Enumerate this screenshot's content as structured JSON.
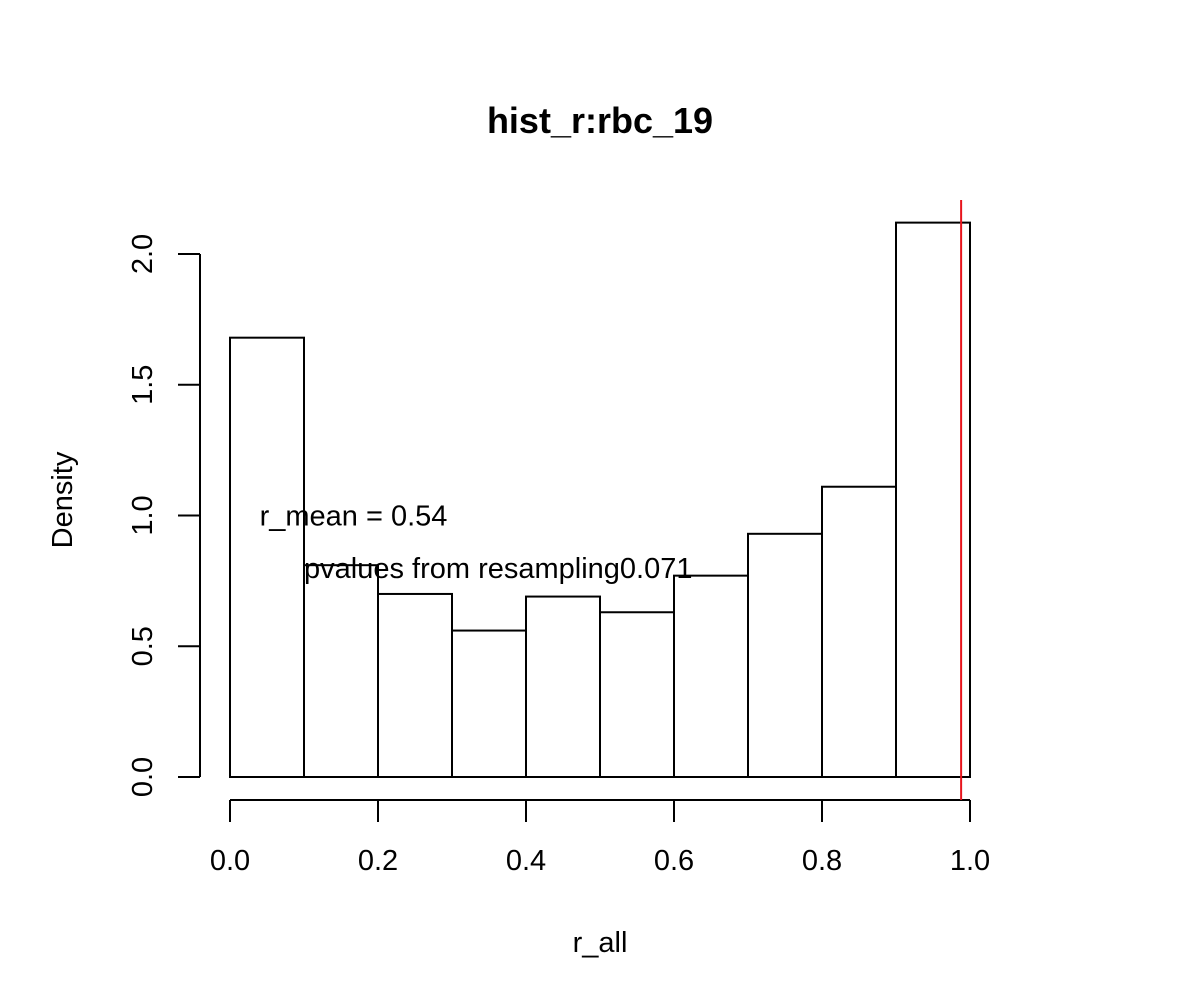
{
  "chart_data": {
    "type": "bar",
    "title": "hist_r:rbc_19",
    "xlabel": "r_all",
    "ylabel": "Density",
    "xlim": [
      0.0,
      1.0
    ],
    "ylim": [
      0.0,
      2.1
    ],
    "xticks": [
      "0.0",
      "0.2",
      "0.4",
      "0.6",
      "0.8",
      "1.0"
    ],
    "yticks": [
      "0.0",
      "0.5",
      "1.0",
      "1.5",
      "2.0"
    ],
    "bins": [
      {
        "x0": 0.0,
        "x1": 0.1,
        "density": 1.68
      },
      {
        "x0": 0.1,
        "x1": 0.2,
        "density": 0.81
      },
      {
        "x0": 0.2,
        "x1": 0.3,
        "density": 0.7
      },
      {
        "x0": 0.3,
        "x1": 0.4,
        "density": 0.56
      },
      {
        "x0": 0.4,
        "x1": 0.5,
        "density": 0.69
      },
      {
        "x0": 0.5,
        "x1": 0.6,
        "density": 0.63
      },
      {
        "x0": 0.6,
        "x1": 0.7,
        "density": 0.77
      },
      {
        "x0": 0.7,
        "x1": 0.8,
        "density": 0.93
      },
      {
        "x0": 0.8,
        "x1": 0.9,
        "density": 1.11
      },
      {
        "x0": 0.9,
        "x1": 1.0,
        "density": 2.12
      }
    ],
    "vline": {
      "x": 0.988,
      "color": "#e8141c"
    },
    "annotations": [
      {
        "text": "r_mean = 0.54",
        "x": 0.04,
        "y": 1.0
      },
      {
        "text": "pvalues from resampling0.071",
        "x": 0.1,
        "y": 0.8
      }
    ],
    "grid": false,
    "bar_fill": "#ffffff",
    "bar_stroke": "#000000"
  }
}
